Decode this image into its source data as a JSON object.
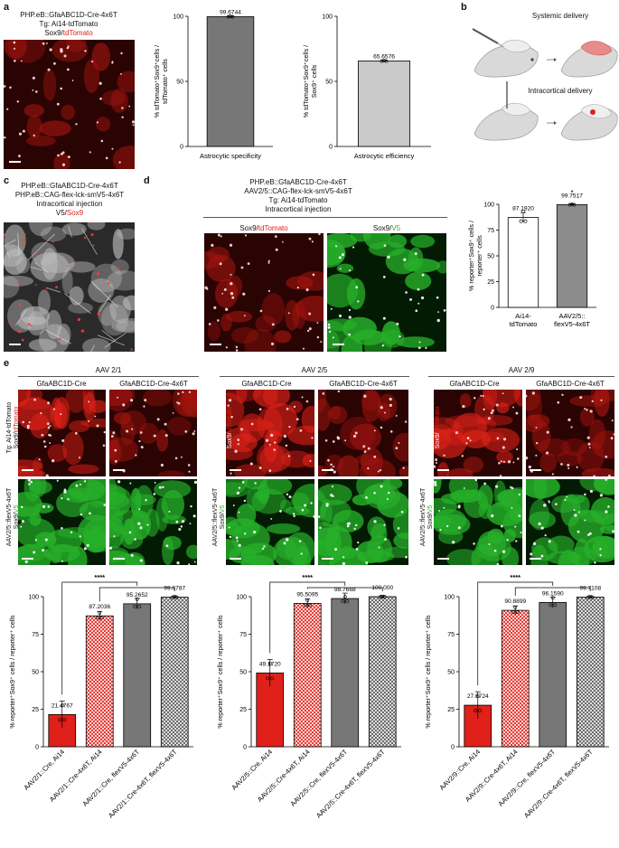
{
  "panels": {
    "a": {
      "label": "a",
      "image_caption": [
        "PHP.eB::GfaABC1D-Cre-4x6T",
        "Tg: Ai14-tdTomato"
      ],
      "stain_prefix": "Sox9/",
      "stain_red": "tdTomato"
    },
    "b": {
      "label": "b",
      "systemic": "Systemic delivery",
      "intracortical": "Intracortical delivery"
    },
    "c": {
      "label": "c",
      "caption": [
        "PHP.eB::GfaABC1D-Cre-4x6T",
        "PHP.eB::CAG-flex-lck-smV5-4x6T",
        "Intracortical injection"
      ],
      "stain_prefix": "V5/",
      "stain_red": "Sox9"
    },
    "d": {
      "label": "d",
      "caption": [
        "PHP.eB::GfaABC1D-Cre-4x6T",
        "AAV2/5::CAG-flex-lck-smV5-4x6T",
        "Tg: Ai14-tdTomato",
        "Intracortical injection"
      ],
      "img1_prefix": "Sox9/",
      "img1_colored": "tdTomato",
      "img2_prefix": "Sox9/",
      "img2_colored": "V5"
    },
    "e": {
      "label": "e",
      "groups": [
        {
          "title": "AAV 2/1",
          "col1": "GfaABC1D-Cre",
          "col2": "GfaABC1D-Cre-4x6T"
        },
        {
          "title": "AAV 2/5",
          "col1": "GfaABC1D-Cre",
          "col2": "GfaABC1D-Cre-4x6T"
        },
        {
          "title": "AAV 2/9",
          "col1": "GfaABC1D-Cre",
          "col2": "GfaABC1D-Cre-4x6T"
        }
      ],
      "row1_side": {
        "line1": "Tg: Ai14-tdTomato",
        "line2_prefix": "Sox9/",
        "line2_colored": "tdTomato"
      },
      "row2_side": {
        "line1": "AAV2/5::flexV5-4x6T",
        "line2_prefix": "Sox9/",
        "line2_colored": "V5"
      }
    }
  },
  "colors": {
    "red": "#e0201a",
    "green": "#2fb52f",
    "dark_gray": "#6e6e6e",
    "mid_gray": "#8c8c8c",
    "light_gray": "#c9c9c9"
  },
  "chart_data": [
    {
      "id": "a-specificity",
      "type": "bar",
      "ylabel": "% tdTomato⁺Sox9⁺cells / tdTomato⁺ cells",
      "categories": [
        "Astrocytic specificity"
      ],
      "values": [
        99.6744
      ],
      "labels": [
        "99.6744"
      ],
      "ylim": [
        0,
        100
      ],
      "yticks": [
        "0",
        "50",
        "100"
      ],
      "fills": [
        "#777777"
      ]
    },
    {
      "id": "a-efficiency",
      "type": "bar",
      "ylabel": "% tdTomato⁺Sox9⁺cells / Sox9⁺ cells",
      "categories": [
        "Astrocytic efficiency"
      ],
      "values": [
        65.6576
      ],
      "labels": [
        "65.6576"
      ],
      "ylim": [
        0,
        100
      ],
      "yticks": [
        "0",
        "50",
        "100"
      ],
      "fills": [
        "#c9c9c9"
      ]
    },
    {
      "id": "d",
      "type": "bar",
      "ylabel": "% reporter⁺Sox9⁺ cells / reporter⁺ cells",
      "categories": [
        "Ai14-tdTomato",
        "AAV2/5::flexV5-4x6T"
      ],
      "values": [
        87.192,
        99.7517
      ],
      "labels": [
        "87.1920",
        "99.7517"
      ],
      "ylim": [
        0,
        100
      ],
      "yticks": [
        "0",
        "25",
        "50",
        "75",
        "100"
      ],
      "fills": [
        "#ffffff",
        "#8c8c8c"
      ],
      "annotation": "*"
    },
    {
      "id": "e-aav21",
      "type": "bar",
      "ylabel": "% reporter⁺Sox9⁺ cells / reporter⁺ cells",
      "categories": [
        "AAV2/1::Cre, Ai14",
        "AAV2/1::Cre-4x6T, Ai14",
        "AAV2/1::Cre, flexV5-4x6T",
        "AAV2/1::Cre-4x6T, flexV5-4x6T"
      ],
      "values": [
        21.4767,
        87.2036,
        95.2652,
        99.6787
      ],
      "labels": [
        "21.4767",
        "87.2036",
        "95.2652",
        "99.6787"
      ],
      "ylim": [
        0,
        100
      ],
      "yticks": [
        "0",
        "25",
        "50",
        "75",
        "100"
      ],
      "significance": "****"
    },
    {
      "id": "e-aav25",
      "type": "bar",
      "ylabel": "% reporter⁺Sox9⁺ cells / reporter⁺ cells",
      "categories": [
        "AAV2/5::Cre, Ai14",
        "AAV2/5::Cre-4x6T, Ai14",
        "AAV2/5::Cre, flexV5-4x6T",
        "AAV2/5::Cre-4x6T, flexV5-4x6T"
      ],
      "values": [
        49.172,
        95.5095,
        98.7668,
        100.0
      ],
      "labels": [
        "49.1720",
        "95.5095",
        "98.7668",
        "100.000"
      ],
      "ylim": [
        0,
        100
      ],
      "yticks": [
        "0",
        "25",
        "50",
        "75",
        "100"
      ],
      "significance": "****"
    },
    {
      "id": "e-aav29",
      "type": "bar",
      "ylabel": "% reporter⁺Sox9⁺ cells / reporter⁺ cells",
      "categories": [
        "AAV2/9::Cre, Ai14",
        "AAV2/9::Cre-4x6T, Ai14",
        "AAV2/9::Cre, flexV5-4x6T",
        "AAV2/9::Cre-4x6T, flexV5-4x6T"
      ],
      "values": [
        27.6724,
        90.8899,
        96.159,
        99.7108
      ],
      "labels": [
        "27.6724",
        "90.8899",
        "96.1590",
        "99.7108"
      ],
      "ylim": [
        0,
        100
      ],
      "yticks": [
        "0",
        "25",
        "50",
        "75",
        "100"
      ],
      "significance": "****"
    }
  ]
}
